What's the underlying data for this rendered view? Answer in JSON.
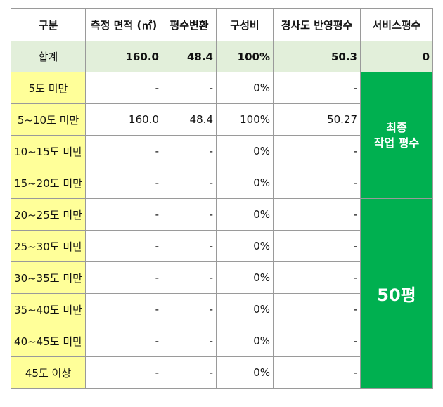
{
  "headers": [
    "구분",
    "측정 면적 (㎡)",
    "평수변환",
    "구성비",
    "경사도 반영평수",
    "서비스평수"
  ],
  "total": {
    "label": "합계",
    "area": "160.0",
    "pyeong": "48.4",
    "ratio": "100%",
    "slope": "50.3",
    "service": "0"
  },
  "rows": [
    {
      "label": "5도 미만",
      "area": "-",
      "pyeong": "-",
      "ratio": "0%",
      "slope": "-"
    },
    {
      "label": "5~10도 미만",
      "area": "160.0",
      "pyeong": "48.4",
      "ratio": "100%",
      "slope": "50.27"
    },
    {
      "label": "10~15도 미만",
      "area": "-",
      "pyeong": "-",
      "ratio": "0%",
      "slope": "-"
    },
    {
      "label": "15~20도 미만",
      "area": "-",
      "pyeong": "-",
      "ratio": "0%",
      "slope": "-"
    },
    {
      "label": "20~25도 미만",
      "area": "-",
      "pyeong": "-",
      "ratio": "0%",
      "slope": "-"
    },
    {
      "label": "25~30도 미만",
      "area": "-",
      "pyeong": "-",
      "ratio": "0%",
      "slope": "-"
    },
    {
      "label": "30~35도 미만",
      "area": "-",
      "pyeong": "-",
      "ratio": "0%",
      "slope": "-"
    },
    {
      "label": "35~40도 미만",
      "area": "-",
      "pyeong": "-",
      "ratio": "0%",
      "slope": "-"
    },
    {
      "label": "40~45도 미만",
      "area": "-",
      "pyeong": "-",
      "ratio": "0%",
      "slope": "-"
    },
    {
      "label": "45도 이상",
      "area": "-",
      "pyeong": "-",
      "ratio": "0%",
      "slope": "-"
    }
  ],
  "final_label_line1": "최종",
  "final_label_line2": "작업 평수",
  "final_value": "50평",
  "colors": {
    "total_row": "#e2efda",
    "category": "#ffff99",
    "highlight": "#00b050"
  }
}
